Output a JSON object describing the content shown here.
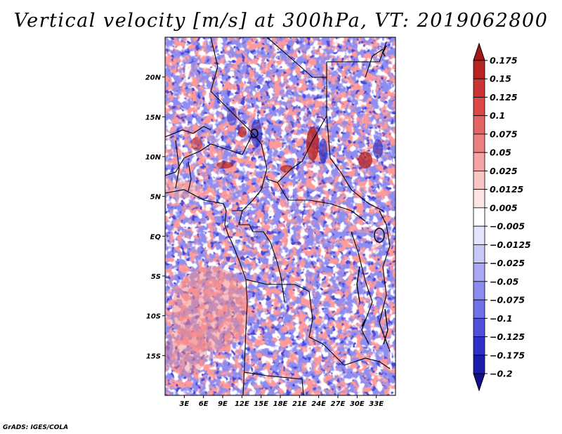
{
  "title": "Vertical velocity [m/s] at 300hPa, VT: 2019062800",
  "credit": "GrADS: IGES/COLA",
  "map": {
    "lon_range": [
      0,
      36
    ],
    "lat_range": [
      -20,
      25
    ],
    "lon_ticks": [
      3,
      6,
      9,
      12,
      15,
      18,
      21,
      24,
      27,
      30,
      33
    ],
    "lon_tick_labels": [
      "3E",
      "6E",
      "9E",
      "12E",
      "15E",
      "18E",
      "21E",
      "24E",
      "27E",
      "30E",
      "33E"
    ],
    "lat_ticks": [
      20,
      15,
      10,
      5,
      0,
      -5,
      -10,
      -15
    ],
    "lat_tick_labels": [
      "20N",
      "15N",
      "10N",
      "5N",
      "EQ",
      "5S",
      "10S",
      "15S"
    ],
    "field": "vertical velocity (shaded)",
    "borders": "country boundaries and coastlines (black)"
  },
  "colorbar": {
    "labels": [
      "0.175",
      "0.15",
      "0.125",
      "0.1",
      "0.075",
      "0.05",
      "0.025",
      "0.0125",
      "0.005",
      "−0.005",
      "−0.0125",
      "−0.025",
      "−0.05",
      "−0.075",
      "−0.1",
      "−0.125",
      "−0.175",
      "−0.2"
    ],
    "colors": [
      "#a01818",
      "#b82424",
      "#cc3434",
      "#dc4848",
      "#e46464",
      "#ec8080",
      "#f4a4a4",
      "#f8c4c4",
      "#fce4e4",
      "#ffffff",
      "#e4e4fc",
      "#c8c8f8",
      "#a8a8f4",
      "#8c8cf0",
      "#7070e8",
      "#5050dc",
      "#3030c8",
      "#1c1cac",
      "#10108c"
    ],
    "extend": "both"
  }
}
